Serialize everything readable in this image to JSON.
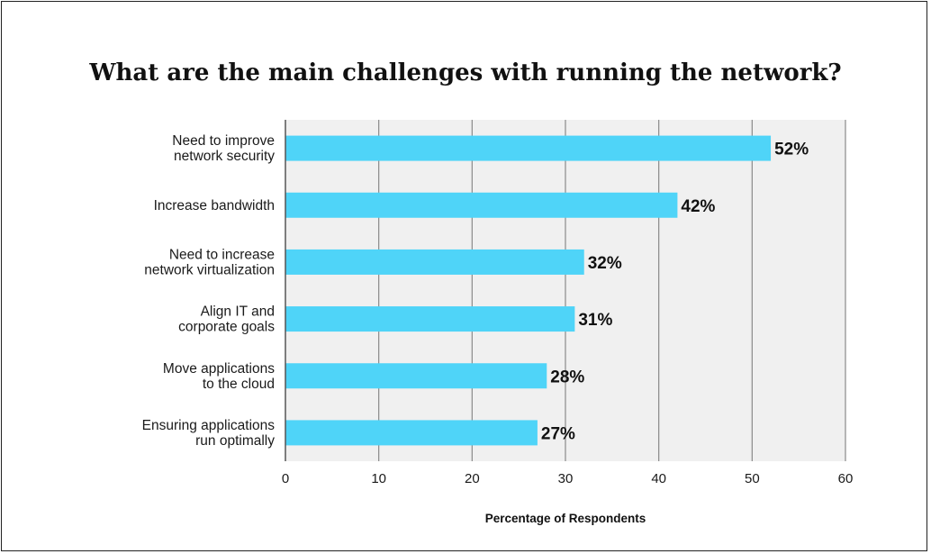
{
  "chart_data": {
    "type": "bar",
    "orientation": "horizontal",
    "title": "What are the main challenges with running the network?",
    "xlabel": "Percentage of Respondents",
    "ylabel": "",
    "xlim": [
      0,
      60
    ],
    "xticks": [
      "0",
      "10",
      "20",
      "30",
      "40",
      "50",
      "60"
    ],
    "grid": true,
    "categories": [
      [
        "Need to improve",
        "network security"
      ],
      [
        "Increase bandwidth"
      ],
      [
        "Need to increase",
        "network virtualization"
      ],
      [
        "Align IT and",
        "corporate goals"
      ],
      [
        "Move applications",
        "to the cloud"
      ],
      [
        "Ensuring applications",
        "run optimally"
      ]
    ],
    "values": [
      52,
      42,
      32,
      31,
      28,
      27
    ],
    "value_labels": [
      "52%",
      "42%",
      "32%",
      "31%",
      "28%",
      "27%"
    ],
    "colors": {
      "bar": "#4fd4f8",
      "plot_bg": "#f0f0f0",
      "grid": "#8a8a8a"
    }
  }
}
